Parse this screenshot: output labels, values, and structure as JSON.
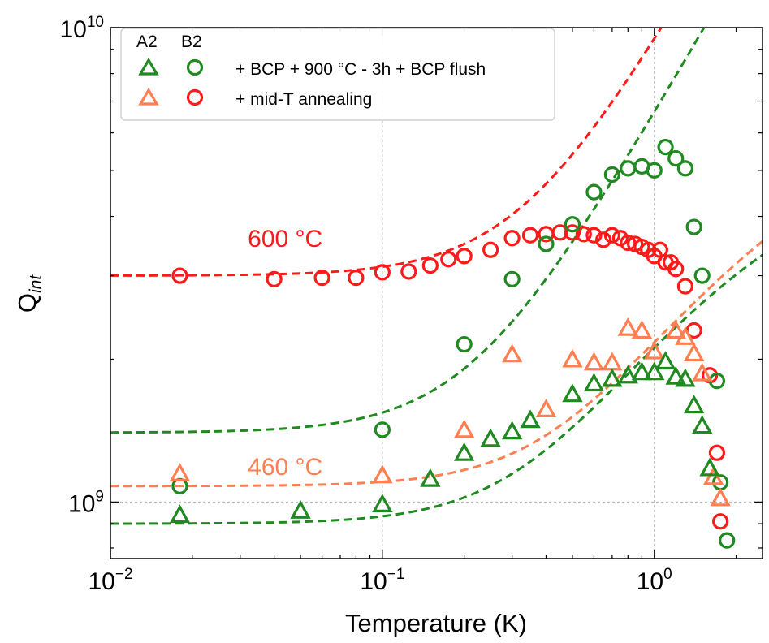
{
  "chart_data": {
    "type": "scatter",
    "xscale": "log",
    "yscale": "log",
    "xlim": [
      0.01,
      2.5
    ],
    "ylim": [
      760000000,
      10000000000
    ],
    "xlabel": "Temperature (K)",
    "ylabel_main": "Q",
    "ylabel_sub": "int",
    "x_ticks": [
      {
        "value": 0.01,
        "base": "10",
        "exp": "−2"
      },
      {
        "value": 0.1,
        "base": "10",
        "exp": "−1"
      },
      {
        "value": 1,
        "base": "10",
        "exp": "0"
      }
    ],
    "y_ticks": [
      {
        "value": 1000000000,
        "base": "10",
        "exp": "9"
      },
      {
        "value": 10000000000,
        "base": "10",
        "exp": "10"
      }
    ],
    "grid": true,
    "legend": {
      "position": "top-left",
      "col_headers": [
        "A2",
        "B2"
      ],
      "rows": [
        {
          "label": "+ BCP + 900 °C - 3h + BCP flush",
          "color": "#1f8a1f"
        },
        {
          "label": "+ mid-T annealing",
          "color": "#ff1a1a",
          "alt_color": "#ff7f50"
        }
      ]
    },
    "annotations": [
      {
        "text": "600 °C",
        "color": "#ff1a1a",
        "x": 0.032,
        "y": 3450000000
      },
      {
        "text": "460 °C",
        "color": "#ff7f50",
        "x": 0.032,
        "y": 1140000000
      }
    ],
    "series": [
      {
        "name": "B2 mid-T annealing (600 °C)",
        "marker": "circle",
        "color": "#ff1a1a",
        "x": [
          0.018,
          0.04,
          0.06,
          0.08,
          0.1,
          0.125,
          0.15,
          0.175,
          0.2,
          0.25,
          0.3,
          0.35,
          0.4,
          0.45,
          0.5,
          0.55,
          0.6,
          0.65,
          0.7,
          0.75,
          0.8,
          0.85,
          0.9,
          0.95,
          1.0,
          1.05,
          1.1,
          1.15,
          1.2,
          1.3,
          1.4,
          1.6,
          1.7,
          1.75
        ],
        "y": [
          3000000000,
          2950000000,
          2970000000,
          2970000000,
          3050000000,
          3060000000,
          3150000000,
          3250000000,
          3300000000,
          3400000000,
          3600000000,
          3650000000,
          3670000000,
          3700000000,
          3700000000,
          3670000000,
          3650000000,
          3570000000,
          3650000000,
          3600000000,
          3520000000,
          3500000000,
          3450000000,
          3400000000,
          3300000000,
          3400000000,
          3200000000,
          3200000000,
          3100000000,
          2850000000,
          2300000000,
          1850000000,
          1270000000,
          910000000
        ]
      },
      {
        "name": "B2 + BCP + 900 °C - 3h + BCP flush",
        "marker": "circle",
        "color": "#1f8a1f",
        "x": [
          0.018,
          0.1,
          0.2,
          0.3,
          0.4,
          0.5,
          0.6,
          0.7,
          0.8,
          0.9,
          1.0,
          1.1,
          1.2,
          1.3,
          1.4,
          1.5,
          1.7,
          1.75,
          1.85
        ],
        "y": [
          1080000000,
          1420000000,
          2150000000,
          2950000000,
          3500000000,
          3850000000,
          4500000000,
          4900000000,
          5050000000,
          5100000000,
          5000000000,
          5600000000,
          5300000000,
          5050000000,
          3800000000,
          3000000000,
          1800000000,
          1100000000,
          830000000
        ]
      },
      {
        "name": "A2 mid-T annealing (460 °C)",
        "marker": "triangle",
        "color": "#ff7f50",
        "x": [
          0.018,
          0.1,
          0.2,
          0.3,
          0.4,
          0.5,
          0.6,
          0.7,
          0.8,
          0.9,
          1.0,
          1.2,
          1.3,
          1.4,
          1.5,
          1.65,
          1.75
        ],
        "y": [
          1150000000,
          1140000000,
          1420000000,
          2050000000,
          1570000000,
          2000000000,
          1970000000,
          1970000000,
          2330000000,
          2300000000,
          2080000000,
          2300000000,
          2230000000,
          2060000000,
          1870000000,
          1130000000,
          1020000000
        ]
      },
      {
        "name": "A2 + BCP + 900 °C - 3h + BCP flush",
        "marker": "triangle",
        "color": "#1f8a1f",
        "x": [
          0.018,
          0.05,
          0.1,
          0.15,
          0.2,
          0.25,
          0.3,
          0.35,
          0.5,
          0.6,
          0.7,
          0.8,
          0.9,
          1.0,
          1.1,
          1.2,
          1.3,
          1.4,
          1.5,
          1.6
        ],
        "y": [
          940000000,
          960000000,
          990000000,
          1120000000,
          1270000000,
          1360000000,
          1410000000,
          1490000000,
          1690000000,
          1780000000,
          1820000000,
          1850000000,
          1880000000,
          1880000000,
          1980000000,
          1840000000,
          1820000000,
          1600000000,
          1450000000,
          1180000000
        ]
      }
    ],
    "fits": [
      {
        "name": "600 °C fit",
        "color": "#ff1a1a",
        "low": 3000000000,
        "rate": 9000000000
      },
      {
        "name": "B2 900 °C fit",
        "color": "#1f8a1f",
        "low": 1400000000,
        "rate": 6500000000
      },
      {
        "name": "460 °C fit",
        "color": "#ff7f50",
        "low": 1080000000,
        "rate": 2460000000,
        "sat": 3000000000
      },
      {
        "name": "A2 900 °C fit",
        "color": "#1f8a1f",
        "low": 900000000,
        "rate": 2700000000,
        "sat": 2480000000
      }
    ]
  }
}
